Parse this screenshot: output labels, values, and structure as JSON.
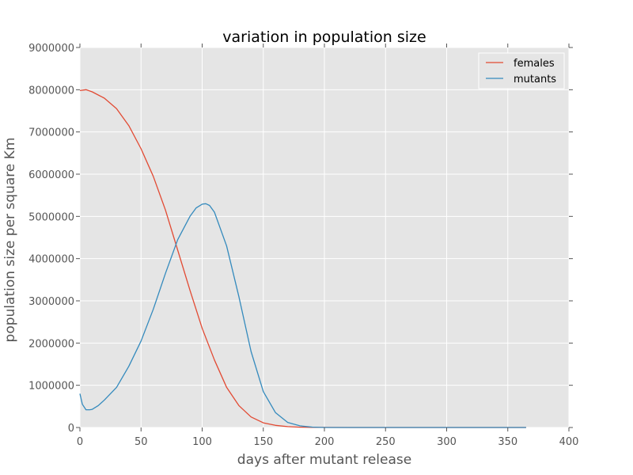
{
  "chart_data": {
    "type": "line",
    "title": "variation in population size",
    "xlabel": "days after mutant release",
    "ylabel": "population size per square Km",
    "xlim": [
      0,
      400
    ],
    "ylim": [
      0,
      9000000
    ],
    "xticks": [
      "0",
      "50",
      "100",
      "150",
      "200",
      "250",
      "300",
      "350",
      "400"
    ],
    "yticks": [
      "0",
      "1000000",
      "2000000",
      "3000000",
      "4000000",
      "5000000",
      "6000000",
      "7000000",
      "8000000",
      "9000000"
    ],
    "grid": true,
    "legend_position": "top-right",
    "background_color": "#e5e5e5",
    "series": [
      {
        "name": "females",
        "color": "#e24a33",
        "x": [
          0,
          5,
          10,
          20,
          30,
          40,
          50,
          60,
          70,
          80,
          90,
          100,
          110,
          120,
          130,
          140,
          150,
          160,
          170,
          180,
          190,
          200,
          220,
          250,
          300,
          365
        ],
        "y": [
          7980000,
          8000000,
          7950000,
          7800000,
          7550000,
          7150000,
          6600000,
          5950000,
          5150000,
          4200000,
          3250000,
          2350000,
          1600000,
          950000,
          520000,
          250000,
          110000,
          50000,
          20000,
          8000,
          3000,
          1000,
          0,
          0,
          0,
          0
        ]
      },
      {
        "name": "mutants",
        "color": "#348abd",
        "x": [
          0,
          2,
          5,
          8,
          10,
          15,
          20,
          30,
          40,
          50,
          60,
          70,
          80,
          90,
          95,
          100,
          103,
          106,
          110,
          120,
          130,
          140,
          150,
          160,
          170,
          180,
          190,
          200,
          220,
          250,
          300,
          365
        ],
        "y": [
          800000,
          550000,
          420000,
          420000,
          430000,
          520000,
          650000,
          950000,
          1450000,
          2050000,
          2800000,
          3650000,
          4450000,
          5000000,
          5200000,
          5290000,
          5300000,
          5260000,
          5100000,
          4300000,
          3100000,
          1800000,
          850000,
          350000,
          120000,
          40000,
          10000,
          0,
          0,
          0,
          0,
          0
        ]
      }
    ]
  }
}
